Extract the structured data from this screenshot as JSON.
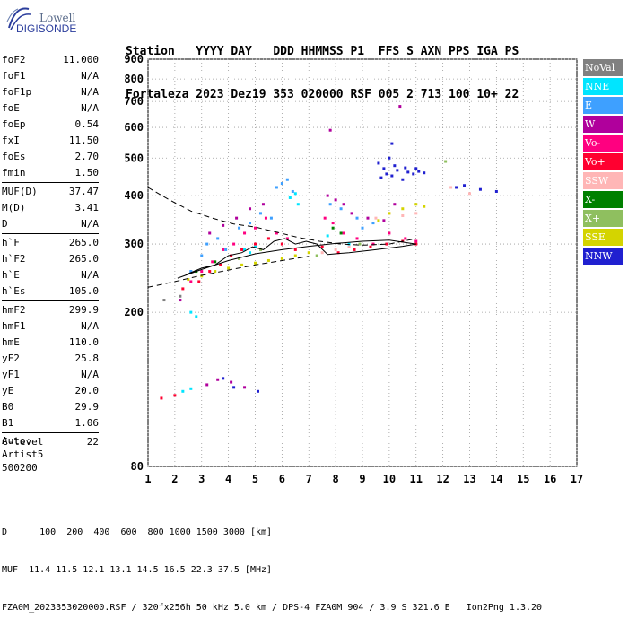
{
  "logo": {
    "line1": "Lowell",
    "line2": "DIGISONDE"
  },
  "header": {
    "row1": "Station   YYYY DAY   DDD HHMMSS P1  FFS S AXN PPS IGA PS",
    "row2": "Fortaleza 2023 Dez19 353 020000 RSF 005 2 713 100 10+ 22"
  },
  "params": [
    [
      {
        "name": "foF2",
        "value": "11.000"
      },
      {
        "name": "foF1",
        "value": "N/A"
      },
      {
        "name": "foF1p",
        "value": "N/A"
      },
      {
        "name": "foE",
        "value": "N/A"
      },
      {
        "name": "foEp",
        "value": "0.54"
      },
      {
        "name": "fxI",
        "value": "11.50"
      },
      {
        "name": "foEs",
        "value": "2.70"
      },
      {
        "name": "fmin",
        "value": "1.50"
      }
    ],
    [
      {
        "name": "MUF(D)",
        "value": "37.47"
      },
      {
        "name": "M(D)",
        "value": "3.41"
      },
      {
        "name": "D",
        "value": "N/A"
      }
    ],
    [
      {
        "name": "h`F",
        "value": "265.0"
      },
      {
        "name": "h`F2",
        "value": "265.0"
      },
      {
        "name": "h`E",
        "value": "N/A"
      },
      {
        "name": "h`Es",
        "value": "105.0"
      }
    ],
    [
      {
        "name": "hmF2",
        "value": "299.9"
      },
      {
        "name": "hmF1",
        "value": "N/A"
      },
      {
        "name": "hmE",
        "value": "110.0"
      },
      {
        "name": "yF2",
        "value": "25.8"
      },
      {
        "name": "yF1",
        "value": "N/A"
      },
      {
        "name": "yE",
        "value": "20.0"
      },
      {
        "name": "B0",
        "value": "29.9"
      },
      {
        "name": "B1",
        "value": "1.06"
      }
    ],
    [
      {
        "name": "C-level",
        "value": "22"
      }
    ]
  ],
  "auto": {
    "line1": "Auto:",
    "line2": "Artist5",
    "line3": "500200"
  },
  "legend": [
    {
      "label": "NoVal",
      "color": "#808080",
      "text_color": "#ffffff"
    },
    {
      "label": "NNE",
      "color": "#00e5ff",
      "text_color": "#ffffff"
    },
    {
      "label": "E",
      "color": "#3ea0ff",
      "text_color": "#ffffff"
    },
    {
      "label": "W",
      "color": "#b0009c",
      "text_color": "#ffffff"
    },
    {
      "label": "Vo-",
      "color": "#ff0080",
      "text_color": "#ffffff"
    },
    {
      "label": "Vo+",
      "color": "#ff0030",
      "text_color": "#ffffff"
    },
    {
      "label": "SSW",
      "color": "#ffb6b6",
      "text_color": "#ffffff"
    },
    {
      "label": "X-",
      "color": "#008000",
      "text_color": "#ffffff"
    },
    {
      "label": "X+",
      "color": "#8fbf5f",
      "text_color": "#ffffff"
    },
    {
      "label": "SSE",
      "color": "#d4d400",
      "text_color": "#ffffff"
    },
    {
      "label": "NNW",
      "color": "#2020d0",
      "text_color": "#ffffff"
    }
  ],
  "chart_data": {
    "type": "scatter",
    "xlim": [
      1,
      17
    ],
    "ylim": [
      80,
      900
    ],
    "y_scale": "log",
    "x_ticks": [
      1,
      2,
      3,
      4,
      5,
      6,
      7,
      8,
      9,
      10,
      11,
      12,
      13,
      14,
      15,
      16,
      17
    ],
    "y_ticks": [
      80,
      200,
      300,
      400,
      500,
      600,
      700,
      800,
      900
    ],
    "grid": true,
    "series": [
      {
        "name": "NNW",
        "color": "#2020d0",
        "points": [
          [
            9.7,
            445
          ],
          [
            9.9,
            455
          ],
          [
            10.1,
            450
          ],
          [
            10.3,
            465
          ],
          [
            10.5,
            440
          ],
          [
            10.7,
            460
          ],
          [
            10.9,
            455
          ],
          [
            11.1,
            462
          ],
          [
            11.3,
            458
          ],
          [
            9.8,
            470
          ],
          [
            10.2,
            478
          ],
          [
            10.6,
            472
          ],
          [
            11.0,
            470
          ],
          [
            10.0,
            500
          ],
          [
            9.6,
            485
          ],
          [
            12.5,
            420
          ],
          [
            12.8,
            425
          ],
          [
            13.4,
            415
          ],
          [
            14.0,
            410
          ],
          [
            10.1,
            545
          ],
          [
            5.1,
            125
          ],
          [
            4.2,
            128
          ],
          [
            3.8,
            135
          ]
        ]
      },
      {
        "name": "E",
        "color": "#3ea0ff",
        "points": [
          [
            5.8,
            420
          ],
          [
            6.0,
            430
          ],
          [
            6.2,
            440
          ],
          [
            6.4,
            410
          ],
          [
            4.4,
            330
          ],
          [
            4.8,
            340
          ],
          [
            5.2,
            360
          ],
          [
            5.6,
            350
          ],
          [
            3.2,
            300
          ],
          [
            3.6,
            310
          ],
          [
            3.0,
            280
          ],
          [
            8.8,
            350
          ],
          [
            9.0,
            330
          ],
          [
            7.8,
            380
          ],
          [
            8.2,
            370
          ],
          [
            9.4,
            340
          ],
          [
            2.6,
            255
          ],
          [
            3.9,
            290
          ]
        ]
      },
      {
        "name": "NNE",
        "color": "#00e5ff",
        "points": [
          [
            6.3,
            395
          ],
          [
            6.5,
            405
          ],
          [
            6.6,
            380
          ],
          [
            4.6,
            290
          ],
          [
            4.8,
            285
          ],
          [
            5.0,
            295
          ],
          [
            7.7,
            315
          ],
          [
            8.5,
            300
          ],
          [
            2.8,
            195
          ],
          [
            2.6,
            200
          ],
          [
            2.3,
            125
          ],
          [
            2.6,
            127
          ]
        ]
      },
      {
        "name": "W",
        "color": "#b0009c",
        "points": [
          [
            3.3,
            320
          ],
          [
            3.8,
            335
          ],
          [
            4.3,
            350
          ],
          [
            4.8,
            370
          ],
          [
            5.3,
            380
          ],
          [
            7.7,
            400
          ],
          [
            8.0,
            390
          ],
          [
            8.3,
            380
          ],
          [
            8.6,
            360
          ],
          [
            9.2,
            350
          ],
          [
            9.8,
            345
          ],
          [
            10.2,
            380
          ],
          [
            10.4,
            680
          ],
          [
            7.8,
            590
          ],
          [
            3.2,
            130
          ],
          [
            3.6,
            134
          ],
          [
            4.1,
            132
          ],
          [
            4.6,
            128
          ],
          [
            2.2,
            215
          ]
        ]
      },
      {
        "name": "Vo-",
        "color": "#ff0080",
        "points": [
          [
            2.6,
            240
          ],
          [
            3.0,
            255
          ],
          [
            3.4,
            270
          ],
          [
            3.8,
            290
          ],
          [
            4.2,
            300
          ],
          [
            4.6,
            320
          ],
          [
            5.0,
            330
          ],
          [
            5.4,
            350
          ],
          [
            5.8,
            320
          ],
          [
            6.2,
            310
          ],
          [
            7.6,
            350
          ],
          [
            7.9,
            340
          ],
          [
            8.3,
            320
          ],
          [
            8.8,
            310
          ],
          [
            9.4,
            300
          ],
          [
            10.0,
            320
          ],
          [
            10.6,
            310
          ],
          [
            11.0,
            305
          ]
        ]
      },
      {
        "name": "Vo+",
        "color": "#ff0030",
        "points": [
          [
            2.3,
            230
          ],
          [
            2.9,
            240
          ],
          [
            3.3,
            255
          ],
          [
            3.7,
            265
          ],
          [
            4.1,
            280
          ],
          [
            4.5,
            290
          ],
          [
            5.0,
            300
          ],
          [
            5.5,
            310
          ],
          [
            6.0,
            300
          ],
          [
            6.5,
            290
          ],
          [
            7.5,
            295
          ],
          [
            8.1,
            285
          ],
          [
            8.7,
            290
          ],
          [
            9.3,
            295
          ],
          [
            9.9,
            300
          ],
          [
            10.5,
            305
          ],
          [
            11.0,
            300
          ],
          [
            1.5,
            120
          ],
          [
            2.0,
            122
          ]
        ]
      },
      {
        "name": "SSW",
        "color": "#ffb6b6",
        "points": [
          [
            9.5,
            350
          ],
          [
            10.0,
            360
          ],
          [
            10.5,
            355
          ],
          [
            11.0,
            360
          ],
          [
            7.5,
            285
          ],
          [
            8.0,
            290
          ],
          [
            8.5,
            295
          ],
          [
            12.3,
            420
          ],
          [
            13.0,
            405
          ]
        ]
      },
      {
        "name": "X-",
        "color": "#008000",
        "points": [
          [
            2.8,
            255
          ],
          [
            3.5,
            270
          ],
          [
            7.9,
            330
          ],
          [
            8.2,
            320
          ]
        ]
      },
      {
        "name": "X+",
        "color": "#8fbf5f",
        "points": [
          [
            4.4,
            275
          ],
          [
            5.2,
            290
          ],
          [
            7.3,
            280
          ],
          [
            8.9,
            300
          ],
          [
            12.1,
            490
          ]
        ]
      },
      {
        "name": "SSE",
        "color": "#d4d400",
        "points": [
          [
            2.5,
            243
          ],
          [
            3.0,
            248
          ],
          [
            3.5,
            255
          ],
          [
            4.0,
            260
          ],
          [
            4.5,
            265
          ],
          [
            5.0,
            268
          ],
          [
            5.5,
            272
          ],
          [
            6.0,
            275
          ],
          [
            6.5,
            280
          ],
          [
            7.0,
            285
          ],
          [
            10.0,
            360
          ],
          [
            10.5,
            370
          ],
          [
            11.0,
            380
          ],
          [
            11.3,
            375
          ],
          [
            9.6,
            345
          ]
        ]
      },
      {
        "name": "NoVal",
        "color": "#808080",
        "points": [
          [
            1.6,
            215
          ],
          [
            2.2,
            220
          ]
        ]
      }
    ],
    "trace_solid": [
      [
        2.1,
        245
      ],
      [
        3.0,
        258
      ],
      [
        4.0,
        272
      ],
      [
        5.0,
        283
      ],
      [
        6.0,
        290
      ],
      [
        7.0,
        296
      ],
      [
        8.0,
        301
      ],
      [
        9.0,
        305
      ],
      [
        10.0,
        307
      ],
      [
        11.0,
        300
      ],
      [
        10.5,
        296
      ],
      [
        9.5,
        290
      ],
      [
        8.5,
        285
      ],
      [
        7.7,
        282
      ],
      [
        7.3,
        300
      ],
      [
        6.9,
        305
      ],
      [
        6.5,
        300
      ],
      [
        6.1,
        310
      ],
      [
        5.7,
        305
      ],
      [
        5.3,
        290
      ],
      [
        4.9,
        295
      ],
      [
        4.5,
        285
      ],
      [
        4.0,
        280
      ],
      [
        3.5,
        265
      ],
      [
        3.0,
        260
      ],
      [
        2.4,
        250
      ]
    ],
    "trace_dashed": [
      [
        1.0,
        420
      ],
      [
        1.8,
        390
      ],
      [
        2.6,
        365
      ],
      [
        3.4,
        350
      ],
      [
        4.2,
        338
      ],
      [
        5.0,
        332
      ],
      [
        5.8,
        322
      ],
      [
        6.6,
        312
      ],
      [
        7.4,
        305
      ],
      [
        8.2,
        300
      ],
      [
        9.0,
        298
      ],
      [
        10.0,
        300
      ],
      [
        11.0,
        310
      ],
      [
        1.0,
        232
      ],
      [
        2.0,
        240
      ],
      [
        3.0,
        249
      ],
      [
        4.0,
        257
      ],
      [
        5.0,
        265
      ],
      [
        6.0,
        272
      ],
      [
        7.0,
        279
      ]
    ]
  },
  "footer": {
    "row1": "D      100  200  400  600  800 1000 1500 3000 [km]",
    "row2": "MUF  11.4 11.5 12.1 13.1 14.5 16.5 22.3 37.5 [MHz]",
    "row3": "FZA0M_2023353020000.RSF / 320fx256h 50 kHz 5.0 km / DPS-4 FZA0M 904 / 3.9 S 321.6 E   Ion2Png 1.3.20"
  }
}
